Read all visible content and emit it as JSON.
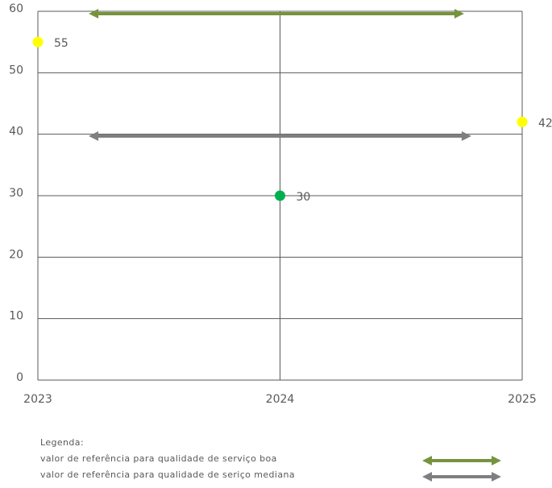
{
  "chart_data": {
    "type": "scatter",
    "x": [
      2023,
      2024,
      2025
    ],
    "values": [
      55,
      30,
      42
    ],
    "colors": [
      "#ffff00",
      "#00b050",
      "#ffff00"
    ],
    "xlim": [
      2023,
      2025
    ],
    "xticks": [
      2023,
      2024,
      2025
    ],
    "ylim": [
      0,
      60
    ],
    "yticks": [
      0,
      10,
      20,
      30,
      40,
      50,
      60
    ],
    "grid": true,
    "legend_title": "Legenda:",
    "reference_lines": [
      {
        "name": "valor de referência para qualidade de serviço boa",
        "color": "#77933c",
        "value": 59.6,
        "x": [
          2023.21,
          2024.76
        ]
      },
      {
        "name": "valor de referência para qualidade de seriço mediana",
        "color": "#7f7f7f",
        "value": 39.7,
        "x": [
          2023.21,
          2024.79
        ]
      }
    ]
  }
}
